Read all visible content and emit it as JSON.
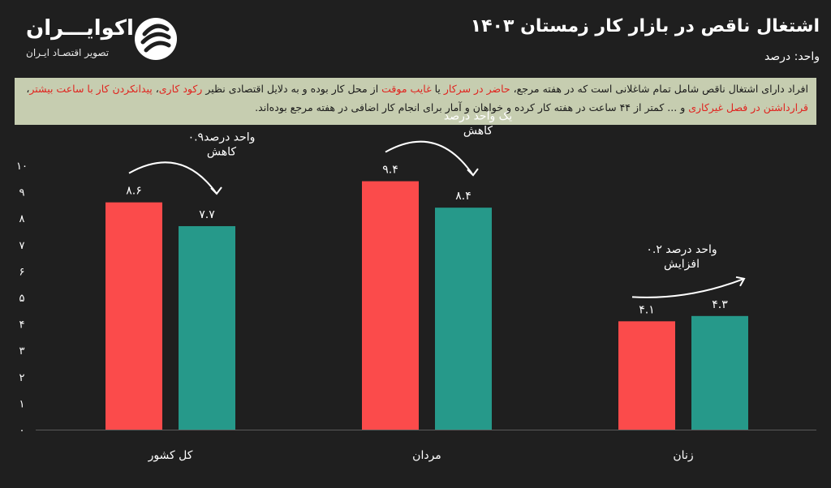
{
  "header": {
    "title": "اشتغال ناقص در بازار کار زمستان ۱۴۰۳",
    "unit_label": "واحد: درصد"
  },
  "brand": {
    "name": "اکوایـــران",
    "tagline": "تصویر اقتصـاد ایـران",
    "mark_icon": "ecoiran-logo-icon"
  },
  "definition": {
    "parts": [
      {
        "text": "افراد دارای اشتغال ناقص شامل تمام شاغلانی است که در هفته مرجع، ",
        "highlight": false
      },
      {
        "text": "حاضر در سرکار",
        "highlight": true
      },
      {
        "text": " یا ",
        "highlight": false
      },
      {
        "text": "غایب موقت",
        "highlight": true
      },
      {
        "text": " از محل کار بوده و به دلایل اقتصادی نظیر ",
        "highlight": false
      },
      {
        "text": "رکود کاری",
        "highlight": true
      },
      {
        "text": "، ",
        "highlight": false
      },
      {
        "text": "پیدانکردن کار با ساعت بیشتر",
        "highlight": true
      },
      {
        "text": "، ",
        "highlight": false
      },
      {
        "text": "قرارداشتن در فصل غیرکاری",
        "highlight": true
      },
      {
        "text": " و ... کمتر از ۴۴ ساعت در هفته کار کرده و خواهان و آمار برای انجام کار اضافی در هفته مرجع بوده‌اند.",
        "highlight": false
      }
    ],
    "colors": {
      "background": "#c6cdb0",
      "highlight": "#e0231e"
    }
  },
  "chart_data": {
    "type": "bar",
    "categories": [
      "کل کشور",
      "مردان",
      "زنان"
    ],
    "series": [
      {
        "values": [
          8.6,
          9.4,
          4.1
        ],
        "labels": [
          "۸.۶",
          "۹.۴",
          "۴.۱"
        ],
        "color": "#fb4b4b"
      },
      {
        "values": [
          7.7,
          8.4,
          4.3
        ],
        "labels": [
          "۷.۷",
          "۸.۴",
          "۴.۳"
        ],
        "color": "#26998a"
      }
    ],
    "ylim": [
      0,
      10
    ],
    "yticks": [
      "۰",
      "۱",
      "۲",
      "۳",
      "۴",
      "۵",
      "۶",
      "۷",
      "۸",
      "۹",
      "۱۰"
    ],
    "grid": false,
    "annotations": [
      {
        "category": 0,
        "lines": [
          "۰.۹واحد درصد",
          "کاهش"
        ],
        "direction": "down"
      },
      {
        "category": 1,
        "lines": [
          "یک واحد درصد",
          "کاهش"
        ],
        "direction": "down"
      },
      {
        "category": 2,
        "lines": [
          "۰.۲ واحد درصد",
          "افزایش"
        ],
        "direction": "up"
      }
    ]
  }
}
